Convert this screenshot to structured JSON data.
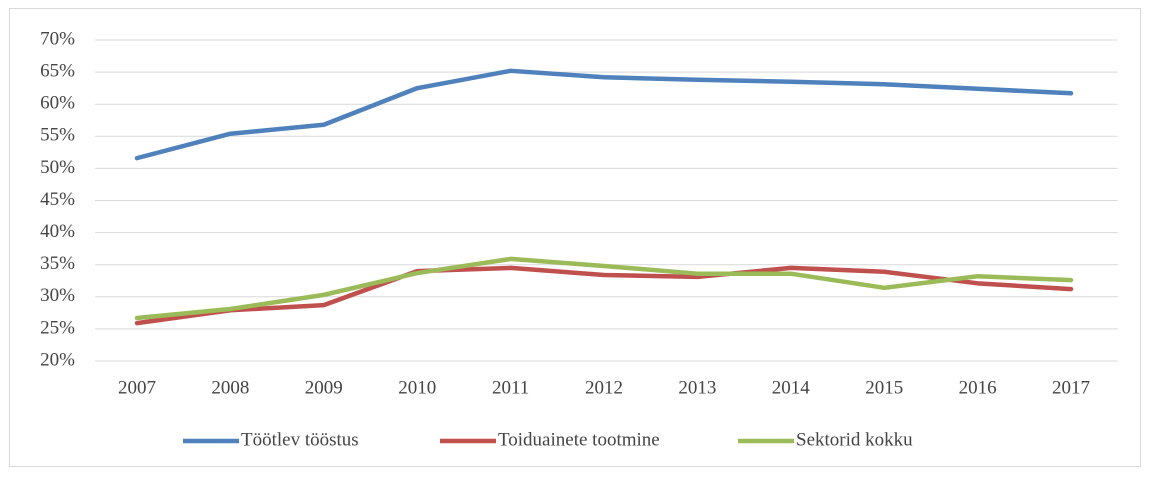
{
  "chart_data": {
    "type": "line",
    "categories": [
      "2007",
      "2008",
      "2009",
      "2010",
      "2011",
      "2012",
      "2013",
      "2014",
      "2015",
      "2016",
      "2017"
    ],
    "series": [
      {
        "name": "Töötlev tööstus",
        "color": "#4f81bd",
        "values": [
          51.6,
          55.4,
          56.8,
          62.5,
          65.2,
          64.2,
          63.8,
          63.5,
          63.1,
          62.4,
          61.7
        ]
      },
      {
        "name": "Toiduainete tootmine",
        "color": "#c0504d",
        "values": [
          25.9,
          27.9,
          28.7,
          34.0,
          34.5,
          33.4,
          33.1,
          34.5,
          33.9,
          32.1,
          31.2
        ]
      },
      {
        "name": "Sektorid kokku",
        "color": "#9bbb59",
        "values": [
          26.7,
          28.1,
          30.3,
          33.7,
          35.9,
          34.8,
          33.6,
          33.6,
          31.4,
          33.2,
          32.6
        ]
      }
    ],
    "ylim": [
      20,
      70
    ],
    "yticks": [
      {
        "value": 20,
        "label": "20%"
      },
      {
        "value": 25,
        "label": "25%"
      },
      {
        "value": 30,
        "label": "30%"
      },
      {
        "value": 35,
        "label": "35%"
      },
      {
        "value": 40,
        "label": "40%"
      },
      {
        "value": 45,
        "label": "45%"
      },
      {
        "value": 50,
        "label": "50%"
      },
      {
        "value": 55,
        "label": "55%"
      },
      {
        "value": 60,
        "label": "60%"
      },
      {
        "value": 65,
        "label": "65%"
      },
      {
        "value": 70,
        "label": "70%"
      }
    ],
    "grid": true,
    "legend": "bottom"
  }
}
